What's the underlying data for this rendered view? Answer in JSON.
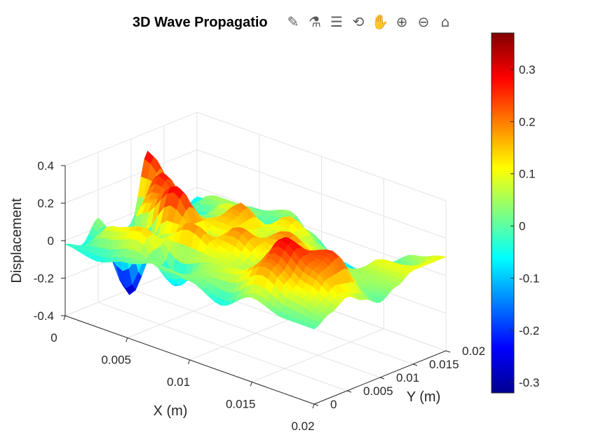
{
  "window": {
    "title": "3D Wave Propagatio"
  },
  "toolbar": {
    "buttons": [
      {
        "name": "brush-data-icon",
        "glyph": "✎"
      },
      {
        "name": "data-tips-icon",
        "glyph": "⚗"
      },
      {
        "name": "legend-toggle-icon",
        "glyph": "☰"
      },
      {
        "name": "rotate-3d-icon",
        "glyph": "⟲"
      },
      {
        "name": "pan-hand-icon",
        "glyph": "✋"
      },
      {
        "name": "zoom-in-icon",
        "glyph": "⊕"
      },
      {
        "name": "zoom-out-icon",
        "glyph": "⊖"
      },
      {
        "name": "home-icon",
        "glyph": "⌂"
      }
    ]
  },
  "chart_data": {
    "type": "surface",
    "title": "3D Wave Propagatio",
    "xlabel": "X (m)",
    "ylabel": "Y (m)",
    "zlabel": "Displacement",
    "xlim": [
      0,
      0.02
    ],
    "ylim": [
      0,
      0.02
    ],
    "zlim": [
      -0.4,
      0.4
    ],
    "xticks": [
      "0",
      "0.005",
      "0.01",
      "0.015",
      "0.02"
    ],
    "yticks": [
      "0",
      "0.005",
      "0.01",
      "0.015",
      "0.02"
    ],
    "zticks": [
      "-0.4",
      "-0.2",
      "0",
      "0.2",
      "0.4"
    ],
    "colormap": "jet",
    "clim": [
      -0.32,
      0.37
    ],
    "colorbar_ticks": [
      "-0.3",
      "-0.2",
      "-0.1",
      "0",
      "0.1",
      "0.2",
      "0.3"
    ],
    "grid": true,
    "surface_samples": {
      "description_free": true,
      "x": [
        0,
        0.0025,
        0.005,
        0.0075,
        0.01,
        0.0125,
        0.015,
        0.0175,
        0.02
      ],
      "y": [
        0,
        0.0025,
        0.005,
        0.0075,
        0.01,
        0.0125,
        0.015,
        0.0175,
        0.02
      ],
      "z": [
        [
          -0.02,
          -0.06,
          0.05,
          -0.18,
          -0.05,
          0.3,
          0.05,
          -0.1,
          -0.05
        ],
        [
          -0.05,
          0.1,
          -0.3,
          0.15,
          0.28,
          0.1,
          -0.05,
          0.05,
          -0.02
        ],
        [
          0.0,
          0.15,
          0.05,
          0.3,
          0.1,
          -0.05,
          0.1,
          0.05,
          0.0
        ],
        [
          0.05,
          -0.1,
          0.2,
          0.05,
          0.15,
          0.2,
          0.0,
          -0.05,
          0.05
        ],
        [
          0.02,
          0.05,
          0.1,
          0.2,
          0.1,
          0.05,
          0.15,
          0.05,
          -0.1
        ],
        [
          -0.05,
          0.1,
          0.05,
          0.1,
          0.2,
          0.1,
          0.05,
          -0.05,
          -0.2
        ],
        [
          0.05,
          0.2,
          0.3,
          0.2,
          0.1,
          0.05,
          -0.05,
          -0.1,
          -0.05
        ],
        [
          0.0,
          0.1,
          0.2,
          0.25,
          0.05,
          0.05,
          0.1,
          0.0,
          0.05
        ],
        [
          0.0,
          0.05,
          0.1,
          0.05,
          0.0,
          0.05,
          0.1,
          0.1,
          0.1
        ]
      ]
    }
  }
}
